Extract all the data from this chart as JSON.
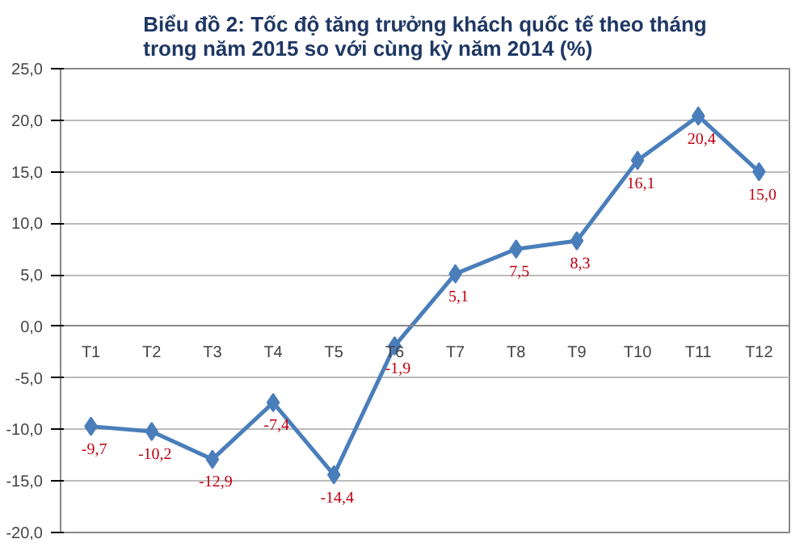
{
  "chart_data": {
    "type": "line",
    "title": "Biểu đồ 2: Tốc độ tăng trưởng khách quốc tế theo tháng\ntrong năm 2015 so với cùng kỳ năm 2014 (%)",
    "categories": [
      "T1",
      "T2",
      "T3",
      "T4",
      "T5",
      "T6",
      "T7",
      "T8",
      "T9",
      "T10",
      "T11",
      "T12"
    ],
    "series": [
      {
        "color": "#4a7ebb",
        "values": [
          -9.7,
          -10.2,
          -12.9,
          -7.4,
          -14.4,
          -1.9,
          5.1,
          7.5,
          8.3,
          16.1,
          20.4,
          15.0
        ],
        "value_labels": [
          "-9,7",
          "-10,2",
          "-12,9",
          "-7,4",
          "-14,4",
          "-1,9",
          "5,1",
          "7,5",
          "8,3",
          "16,1",
          "20,4",
          "15,0"
        ]
      }
    ],
    "ylim": [
      -20,
      25
    ],
    "yticks": [
      {
        "value": -20,
        "label": "-20,0"
      },
      {
        "value": -15,
        "label": "-15,0"
      },
      {
        "value": -10,
        "label": "-10,0"
      },
      {
        "value": -5,
        "label": "-5,0"
      },
      {
        "value": 0,
        "label": "0,0"
      },
      {
        "value": 5,
        "label": "5,0"
      },
      {
        "value": 10,
        "label": "10,0"
      },
      {
        "value": 15,
        "label": "15,0"
      },
      {
        "value": 20,
        "label": "20,0"
      },
      {
        "value": 25,
        "label": "25,0"
      }
    ],
    "grid": "y",
    "marker": "diamond",
    "line_style": "solid"
  }
}
